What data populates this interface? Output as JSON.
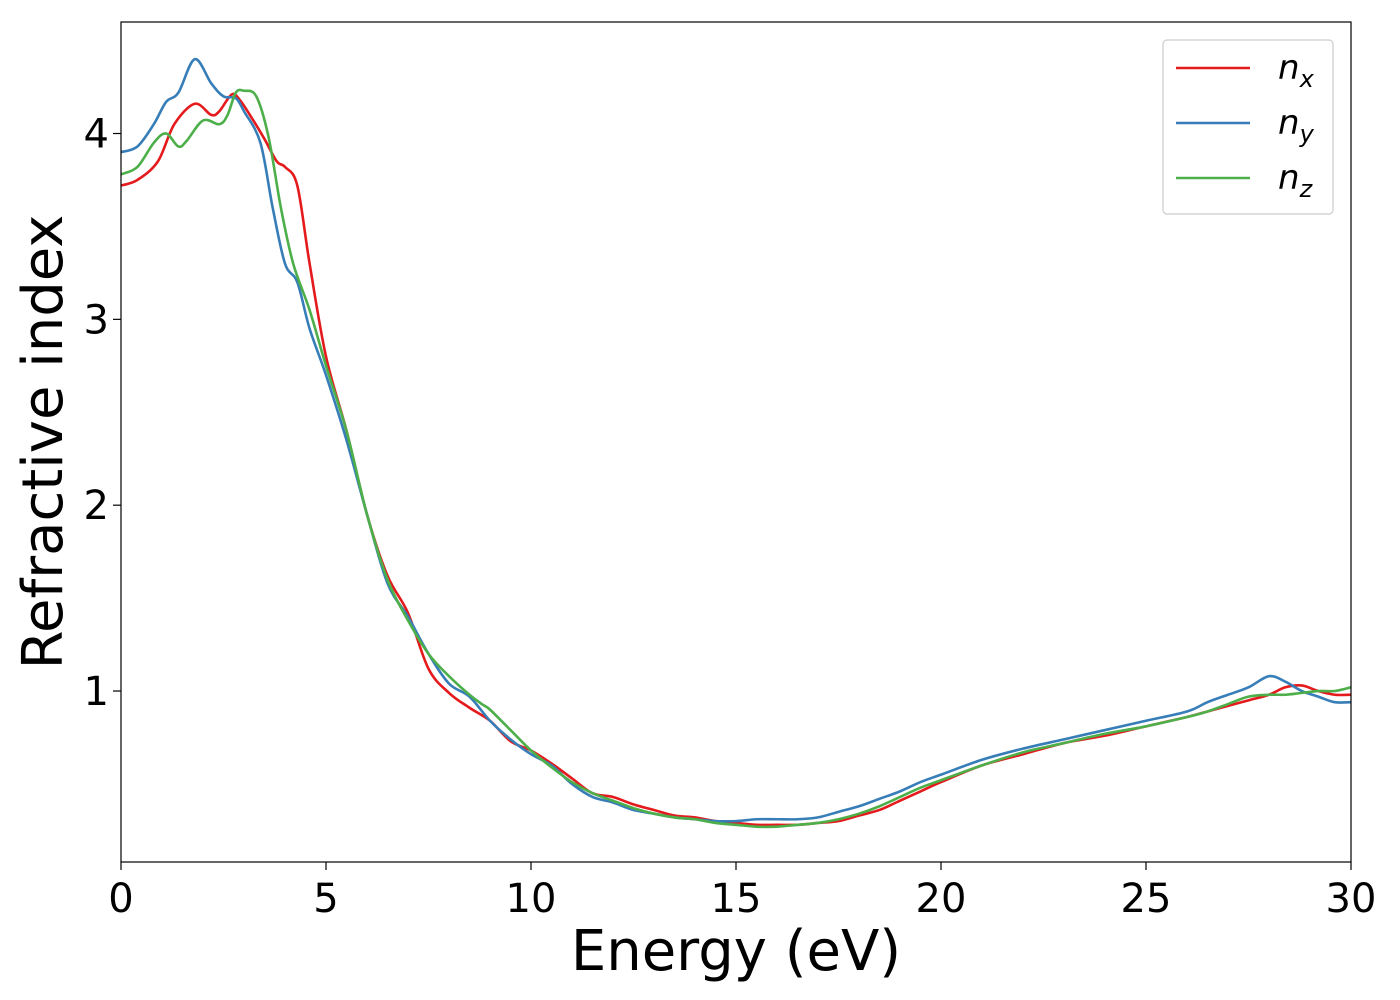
{
  "chart_data": {
    "type": "line",
    "xlabel": "Energy (eV)",
    "ylabel": "Refractive index",
    "xlim": [
      0,
      30
    ],
    "ylim": [
      0.08,
      4.6
    ],
    "xticks": [
      0,
      5,
      10,
      15,
      20,
      25,
      30
    ],
    "xtick_labels": [
      "0",
      "5",
      "10",
      "15",
      "20",
      "25",
      "30"
    ],
    "yticks": [
      1,
      2,
      3,
      4
    ],
    "ytick_labels": [
      "1",
      "2",
      "3",
      "4"
    ],
    "grid": false,
    "legend_position": "top-right",
    "series": [
      {
        "name": "n_x",
        "label_main": "n",
        "label_sub": "x",
        "color": "#e41a1c",
        "x": [
          0,
          0.4,
          0.9,
          1.3,
          1.8,
          2.2,
          2.4,
          2.7,
          2.9,
          3.2,
          3.5,
          3.8,
          4.0,
          4.3,
          4.6,
          5.0,
          5.5,
          6.0,
          6.5,
          7.0,
          7.5,
          8.0,
          8.5,
          9.0,
          9.5,
          10.0,
          10.5,
          11.0,
          11.5,
          12.0,
          12.5,
          13.0,
          13.5,
          14.0,
          14.5,
          15.0,
          15.5,
          16.0,
          16.5,
          17.0,
          17.5,
          18.0,
          18.5,
          19.0,
          19.5,
          20.0,
          21.0,
          22.0,
          23.0,
          24.0,
          25.0,
          26.0,
          26.5,
          27.0,
          27.5,
          28.0,
          28.4,
          28.8,
          29.2,
          29.6,
          30.0
        ],
        "y": [
          3.72,
          3.75,
          3.85,
          4.05,
          4.16,
          4.1,
          4.12,
          4.21,
          4.18,
          4.08,
          3.97,
          3.85,
          3.82,
          3.72,
          3.3,
          2.8,
          2.4,
          1.95,
          1.62,
          1.42,
          1.12,
          0.99,
          0.91,
          0.84,
          0.73,
          0.68,
          0.61,
          0.53,
          0.45,
          0.43,
          0.39,
          0.36,
          0.33,
          0.32,
          0.3,
          0.29,
          0.28,
          0.28,
          0.28,
          0.29,
          0.3,
          0.33,
          0.36,
          0.41,
          0.46,
          0.51,
          0.6,
          0.66,
          0.72,
          0.76,
          0.81,
          0.86,
          0.89,
          0.92,
          0.95,
          0.98,
          1.02,
          1.03,
          1.0,
          0.98,
          0.98
        ]
      },
      {
        "name": "n_y",
        "label_main": "n",
        "label_sub": "y",
        "color": "#377eb8",
        "x": [
          0,
          0.4,
          0.8,
          1.1,
          1.4,
          1.8,
          2.2,
          2.5,
          2.8,
          3.0,
          3.4,
          3.7,
          4.0,
          4.3,
          4.6,
          5.0,
          5.5,
          6.0,
          6.5,
          7.0,
          7.5,
          8.0,
          8.5,
          9.0,
          9.5,
          10.0,
          10.5,
          11.0,
          11.5,
          12.0,
          12.5,
          13.0,
          13.5,
          14.0,
          14.5,
          15.0,
          15.5,
          16.0,
          16.5,
          17.0,
          17.5,
          18.0,
          18.5,
          19.0,
          19.5,
          20.0,
          21.0,
          22.0,
          23.0,
          24.0,
          25.0,
          26.0,
          26.5,
          27.0,
          27.5,
          28.0,
          28.4,
          28.8,
          29.2,
          29.6,
          30.0
        ],
        "y": [
          3.9,
          3.93,
          4.05,
          4.17,
          4.22,
          4.4,
          4.27,
          4.2,
          4.19,
          4.12,
          3.95,
          3.6,
          3.3,
          3.2,
          2.95,
          2.7,
          2.35,
          1.95,
          1.58,
          1.4,
          1.2,
          1.04,
          0.97,
          0.84,
          0.74,
          0.66,
          0.6,
          0.5,
          0.43,
          0.4,
          0.36,
          0.34,
          0.32,
          0.31,
          0.3,
          0.3,
          0.31,
          0.31,
          0.31,
          0.32,
          0.35,
          0.38,
          0.42,
          0.46,
          0.51,
          0.55,
          0.63,
          0.69,
          0.74,
          0.79,
          0.84,
          0.89,
          0.94,
          0.98,
          1.02,
          1.08,
          1.05,
          1.0,
          0.97,
          0.94,
          0.94
        ]
      },
      {
        "name": "n_z",
        "label_main": "n",
        "label_sub": "z",
        "color": "#4daf4a",
        "x": [
          0,
          0.4,
          0.8,
          1.1,
          1.4,
          1.6,
          2.0,
          2.4,
          2.6,
          2.8,
          3.0,
          3.3,
          3.6,
          3.9,
          4.2,
          4.6,
          5.0,
          5.5,
          6.0,
          6.5,
          7.0,
          7.5,
          8.0,
          8.5,
          8.8,
          9.0,
          9.5,
          10.0,
          10.5,
          11.0,
          11.5,
          12.0,
          12.5,
          13.0,
          13.5,
          14.0,
          14.5,
          15.0,
          15.5,
          16.0,
          16.5,
          17.0,
          17.5,
          18.0,
          18.5,
          19.0,
          19.5,
          20.0,
          21.0,
          22.0,
          23.0,
          24.0,
          25.0,
          26.0,
          26.5,
          27.0,
          27.5,
          28.0,
          28.4,
          28.8,
          29.2,
          29.6,
          30.0
        ],
        "y": [
          3.78,
          3.82,
          3.95,
          4.0,
          3.93,
          3.96,
          4.07,
          4.05,
          4.1,
          4.22,
          4.23,
          4.2,
          3.98,
          3.6,
          3.3,
          3.05,
          2.75,
          2.4,
          1.95,
          1.6,
          1.38,
          1.2,
          1.08,
          0.98,
          0.93,
          0.9,
          0.79,
          0.68,
          0.59,
          0.51,
          0.45,
          0.41,
          0.37,
          0.34,
          0.32,
          0.31,
          0.29,
          0.28,
          0.27,
          0.27,
          0.28,
          0.29,
          0.31,
          0.34,
          0.38,
          0.43,
          0.48,
          0.52,
          0.6,
          0.67,
          0.72,
          0.77,
          0.81,
          0.86,
          0.89,
          0.93,
          0.97,
          0.98,
          0.98,
          0.99,
          1.0,
          1.0,
          1.02
        ]
      }
    ]
  }
}
